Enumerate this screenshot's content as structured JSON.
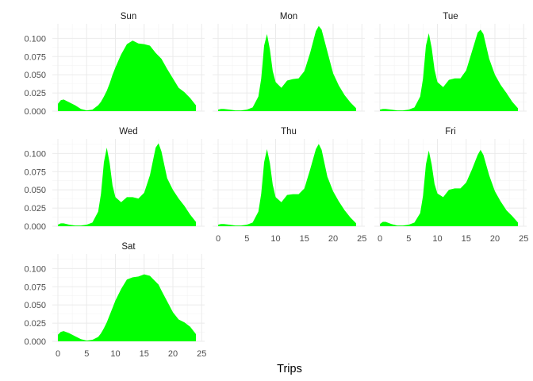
{
  "chart_data": {
    "type": "area",
    "xlabel": "Trips",
    "ylabel": "",
    "xlim": [
      0,
      24
    ],
    "ylim": [
      0,
      0.12
    ],
    "x_ticks": [
      0,
      5,
      10,
      15,
      20,
      25
    ],
    "y_ticks": [
      0.0,
      0.025,
      0.05,
      0.075,
      0.1
    ],
    "y_tick_labels": [
      "0.000",
      "0.025",
      "0.050",
      "0.075",
      "0.100"
    ],
    "grid": true,
    "fill_color": "#00ff00",
    "x": [
      0,
      0.5,
      1,
      2,
      3,
      4,
      5,
      6,
      7,
      7.5,
      8,
      8.5,
      9,
      9.5,
      10,
      11,
      12,
      13,
      14,
      15,
      16,
      17,
      17.5,
      18,
      19,
      20,
      21,
      22,
      23,
      24
    ],
    "panels": [
      {
        "name": "Sun",
        "values": [
          0.01,
          0.015,
          0.016,
          0.012,
          0.008,
          0.003,
          0.001,
          0.002,
          0.008,
          0.013,
          0.02,
          0.028,
          0.038,
          0.05,
          0.06,
          0.078,
          0.092,
          0.097,
          0.093,
          0.092,
          0.09,
          0.08,
          0.076,
          0.072,
          0.058,
          0.045,
          0.032,
          0.026,
          0.018,
          0.008
        ]
      },
      {
        "name": "Mon",
        "values": [
          0.002,
          0.003,
          0.003,
          0.002,
          0.001,
          0.001,
          0.002,
          0.005,
          0.02,
          0.045,
          0.09,
          0.106,
          0.085,
          0.055,
          0.04,
          0.032,
          0.042,
          0.044,
          0.045,
          0.055,
          0.08,
          0.11,
          0.117,
          0.112,
          0.082,
          0.052,
          0.035,
          0.022,
          0.012,
          0.004
        ]
      },
      {
        "name": "Tue",
        "values": [
          0.002,
          0.003,
          0.003,
          0.002,
          0.001,
          0.001,
          0.002,
          0.005,
          0.02,
          0.045,
          0.09,
          0.107,
          0.087,
          0.057,
          0.04,
          0.033,
          0.043,
          0.045,
          0.045,
          0.056,
          0.082,
          0.108,
          0.112,
          0.106,
          0.072,
          0.05,
          0.036,
          0.025,
          0.013,
          0.004
        ]
      },
      {
        "name": "Wed",
        "values": [
          0.002,
          0.004,
          0.004,
          0.002,
          0.001,
          0.001,
          0.002,
          0.005,
          0.02,
          0.045,
          0.088,
          0.108,
          0.087,
          0.056,
          0.04,
          0.033,
          0.04,
          0.04,
          0.038,
          0.046,
          0.07,
          0.108,
          0.114,
          0.103,
          0.066,
          0.05,
          0.038,
          0.028,
          0.016,
          0.006
        ]
      },
      {
        "name": "Thu",
        "values": [
          0.002,
          0.003,
          0.003,
          0.002,
          0.001,
          0.001,
          0.002,
          0.005,
          0.02,
          0.045,
          0.088,
          0.106,
          0.087,
          0.057,
          0.04,
          0.033,
          0.043,
          0.044,
          0.044,
          0.052,
          0.078,
          0.106,
          0.113,
          0.105,
          0.068,
          0.048,
          0.034,
          0.022,
          0.012,
          0.004
        ]
      },
      {
        "name": "Fri",
        "values": [
          0.003,
          0.006,
          0.006,
          0.003,
          0.001,
          0.001,
          0.002,
          0.005,
          0.018,
          0.042,
          0.085,
          0.104,
          0.085,
          0.058,
          0.045,
          0.04,
          0.05,
          0.052,
          0.052,
          0.06,
          0.078,
          0.098,
          0.105,
          0.098,
          0.07,
          0.048,
          0.034,
          0.022,
          0.014,
          0.005
        ]
      },
      {
        "name": "Sat",
        "values": [
          0.009,
          0.013,
          0.014,
          0.011,
          0.007,
          0.003,
          0.001,
          0.002,
          0.006,
          0.011,
          0.018,
          0.026,
          0.036,
          0.046,
          0.056,
          0.072,
          0.085,
          0.088,
          0.089,
          0.092,
          0.09,
          0.082,
          0.078,
          0.07,
          0.055,
          0.04,
          0.03,
          0.026,
          0.02,
          0.01
        ]
      }
    ]
  }
}
